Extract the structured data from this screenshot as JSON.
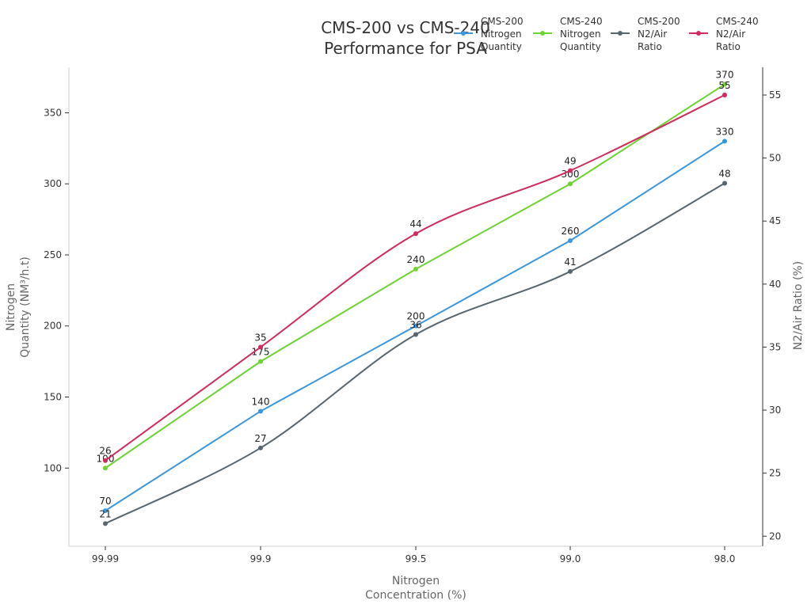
{
  "chart_data": {
    "type": "line",
    "title_lines": [
      "CMS-200 vs CMS-240",
      "Performance for PSA"
    ],
    "xlabel_lines": [
      "Nitrogen",
      "Concentration (%)"
    ],
    "ylabel_left_lines": [
      "Nitrogen",
      "Quantity (NM³/h.t)"
    ],
    "ylabel_right": "N2/Air Ratio (%)",
    "categories": [
      "99.99",
      "99.9",
      "99.5",
      "99.0",
      "98.0"
    ],
    "ylim_left": [
      45,
      382
    ],
    "ylim_right": [
      19.2,
      57.2
    ],
    "yticks_left": [
      100,
      150,
      200,
      250,
      300,
      350
    ],
    "yticks_right": [
      20,
      25,
      30,
      35,
      40,
      45,
      50,
      55
    ],
    "grid": false,
    "legend_position": "top-right",
    "series": [
      {
        "name": "CMS-200 Nitrogen Quantity",
        "legend_lines": [
          "CMS-200",
          "Nitrogen",
          "Quantity"
        ],
        "axis": "left",
        "color": "#3a96dd",
        "smooth": false,
        "values": [
          70,
          140,
          200,
          260,
          330
        ]
      },
      {
        "name": "CMS-240 Nitrogen Quantity",
        "legend_lines": [
          "CMS-240",
          "Nitrogen",
          "Quantity"
        ],
        "axis": "left",
        "color": "#6cd332",
        "smooth": false,
        "values": [
          100,
          175,
          240,
          300,
          370
        ]
      },
      {
        "name": "CMS-200 N2/Air Ratio",
        "legend_lines": [
          "CMS-200",
          "N2/Air",
          "Ratio"
        ],
        "axis": "right",
        "color": "#56666f",
        "smooth": true,
        "values": [
          21,
          27,
          36,
          41,
          48
        ]
      },
      {
        "name": "CMS-240 N2/Air Ratio",
        "legend_lines": [
          "CMS-240",
          "N2/Air",
          "Ratio"
        ],
        "axis": "right",
        "color": "#d02b5d",
        "smooth": true,
        "values": [
          26,
          35,
          44,
          49,
          55
        ]
      }
    ]
  }
}
